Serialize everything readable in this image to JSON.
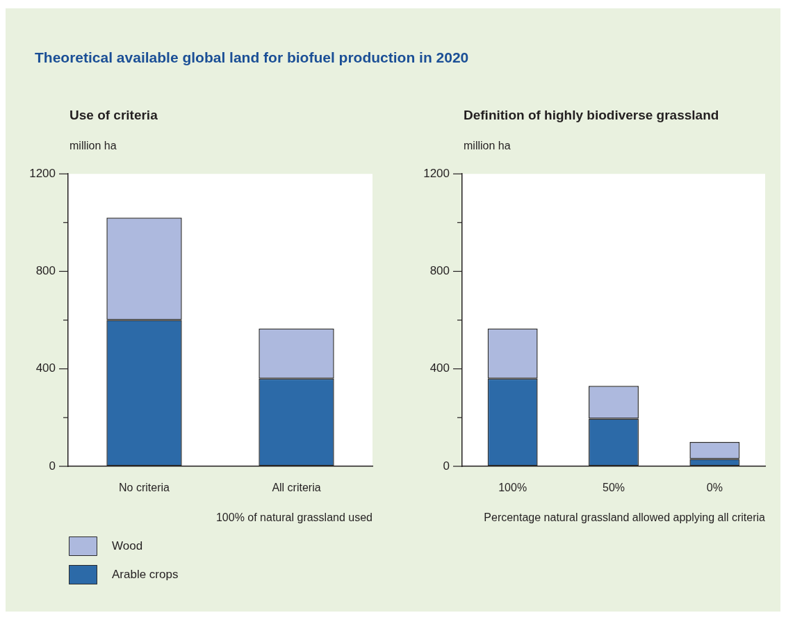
{
  "chart_data": [
    {
      "type": "bar",
      "title": "Theoretical available global land for biofuel production in 2020",
      "subtitle": "Use of criteria",
      "ylabel": "million ha",
      "xlabel": "100% of natural grassland used",
      "categories": [
        "No criteria",
        "All criteria"
      ],
      "stacked": true,
      "series": [
        {
          "name": "Arable crops",
          "color": "#2c6aa8",
          "values": [
            600,
            360
          ]
        },
        {
          "name": "Wood",
          "color": "#adb9de",
          "values": [
            420,
            205
          ]
        }
      ],
      "ylim": [
        0,
        1200
      ],
      "yticks": [
        0,
        {
          "value": 200,
          "label": null
        },
        400,
        {
          "value": 600,
          "label": null
        },
        800,
        {
          "value": 1000,
          "label": null
        },
        1200
      ],
      "legend": "bottom left"
    },
    {
      "type": "bar",
      "subtitle": "Definition of highly biodiverse grassland",
      "ylabel": "million ha",
      "xlabel": "Percentage natural grassland allowed applying all criteria",
      "categories": [
        "100%",
        "50%",
        "0%"
      ],
      "stacked": true,
      "series": [
        {
          "color": "#2c6aa8",
          "values": [
            360,
            195,
            30
          ]
        },
        {
          "color": "#adb9de",
          "values": [
            205,
            135,
            70
          ]
        }
      ],
      "ylim": [
        0,
        1200
      ],
      "yticks": [
        0,
        {
          "value": 200,
          "label": null
        },
        400,
        {
          "value": 600,
          "label": null
        },
        800,
        {
          "value": 1000,
          "label": null
        },
        1200
      ]
    }
  ]
}
